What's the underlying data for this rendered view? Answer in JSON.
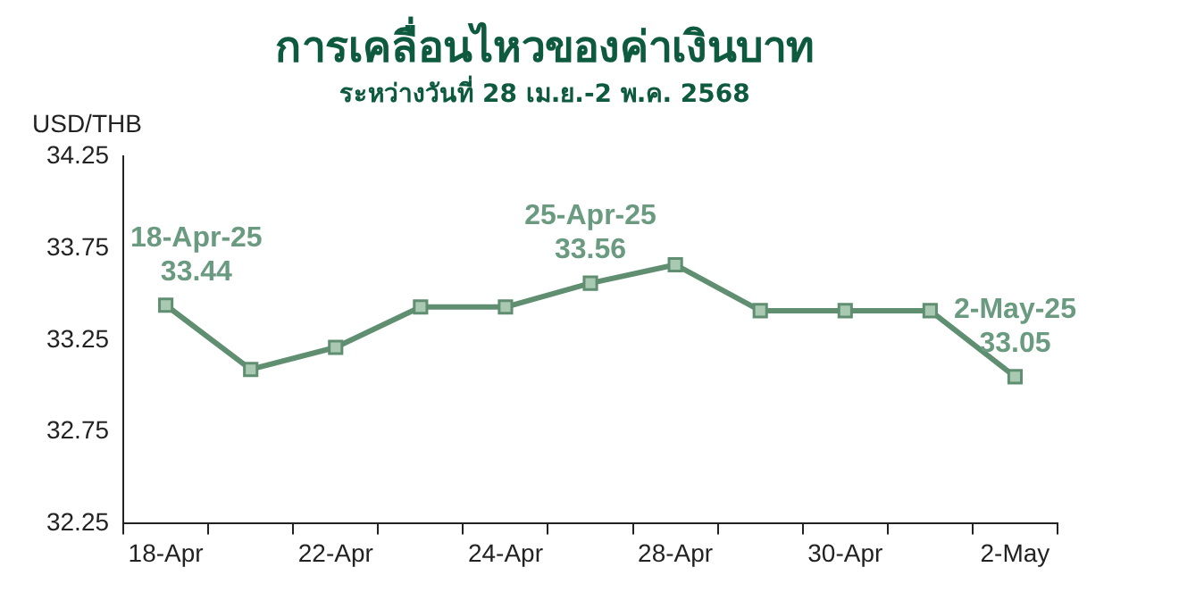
{
  "chart_data": {
    "type": "line",
    "title": "การเคลื่อนไหวของค่าเงินบาท",
    "subtitle": "ระหว่างวันที่ 28 เม.ย.-2 พ.ค. 2568",
    "ylabel": "USD/THB",
    "categories": [
      "18-Apr",
      null,
      "22-Apr",
      null,
      "24-Apr",
      null,
      "28-Apr",
      null,
      "30-Apr",
      null,
      "2-May"
    ],
    "series": [
      {
        "color": "#5f8f70",
        "values": [
          33.44,
          33.09,
          33.21,
          33.43,
          33.43,
          33.56,
          33.66,
          33.41,
          33.41,
          33.41,
          33.05
        ]
      }
    ],
    "ylim": [
      32.25,
      34.25
    ],
    "yticks": [
      32.25,
      32.75,
      33.25,
      33.75,
      34.25
    ],
    "grid": false,
    "legend": false,
    "marker": "square",
    "line_style": "solid",
    "annotations": [
      {
        "text": "18-Apr-25\n33.44",
        "x": "18-Apr",
        "y": 33.44
      },
      {
        "text": "25-Apr-25\n33.56",
        "y": 33.56
      },
      {
        "text": "2-May-25\n33.05",
        "x": "2-May",
        "y": 33.05
      }
    ]
  }
}
